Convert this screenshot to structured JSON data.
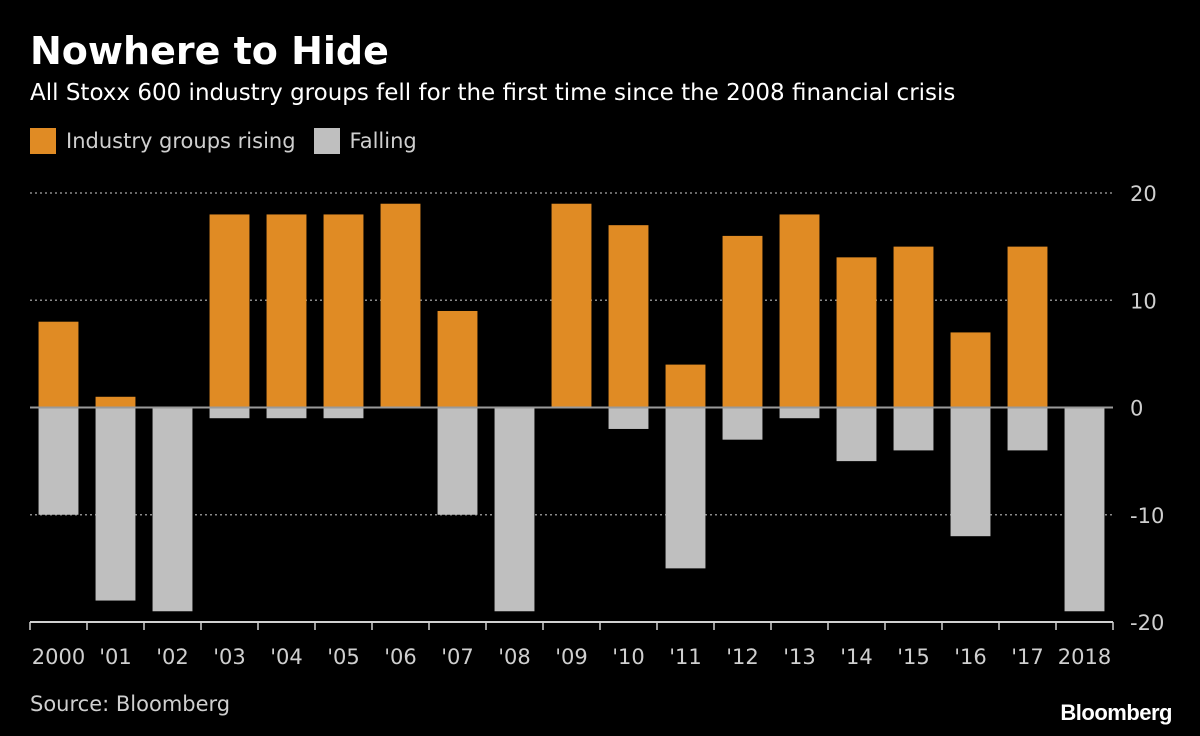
{
  "colors": {
    "rising": "#E08B24",
    "falling": "#BFBFBF",
    "background": "#000000",
    "grid": "#8a8a8a",
    "text": "#ffffff",
    "muted": "#cfcfcf"
  },
  "source": "Source: Bloomberg",
  "logo": "Bloomberg",
  "chart_data": {
    "type": "bar",
    "title": "Nowhere to Hide",
    "subtitle": "All Stoxx 600 industry groups fell for the first time since the 2008 financial crisis",
    "categories": [
      "2000",
      "'01",
      "'02",
      "'03",
      "'04",
      "'05",
      "'06",
      "'07",
      "'08",
      "'09",
      "'10",
      "'11",
      "'12",
      "'13",
      "'14",
      "'15",
      "'16",
      "'17",
      "2018"
    ],
    "series": [
      {
        "name": "Industry groups rising",
        "values": [
          8,
          1,
          0,
          18,
          18,
          18,
          19,
          9,
          0,
          19,
          17,
          4,
          16,
          18,
          14,
          15,
          7,
          15,
          0
        ]
      },
      {
        "name": "Falling",
        "values": [
          -10,
          -18,
          -19,
          -1,
          -1,
          -1,
          0,
          -10,
          -19,
          0,
          -2,
          -15,
          -3,
          -1,
          -5,
          -4,
          -12,
          -4,
          -19
        ]
      }
    ],
    "ylim": [
      -20,
      20
    ],
    "yticks": [
      20,
      10,
      0,
      -10,
      -20
    ],
    "ytick_labels": [
      "20",
      "10",
      "0",
      "-10",
      "-20"
    ],
    "stacked": true,
    "grid": true,
    "legend_position": "top-left",
    "xlabel": "",
    "ylabel": ""
  }
}
